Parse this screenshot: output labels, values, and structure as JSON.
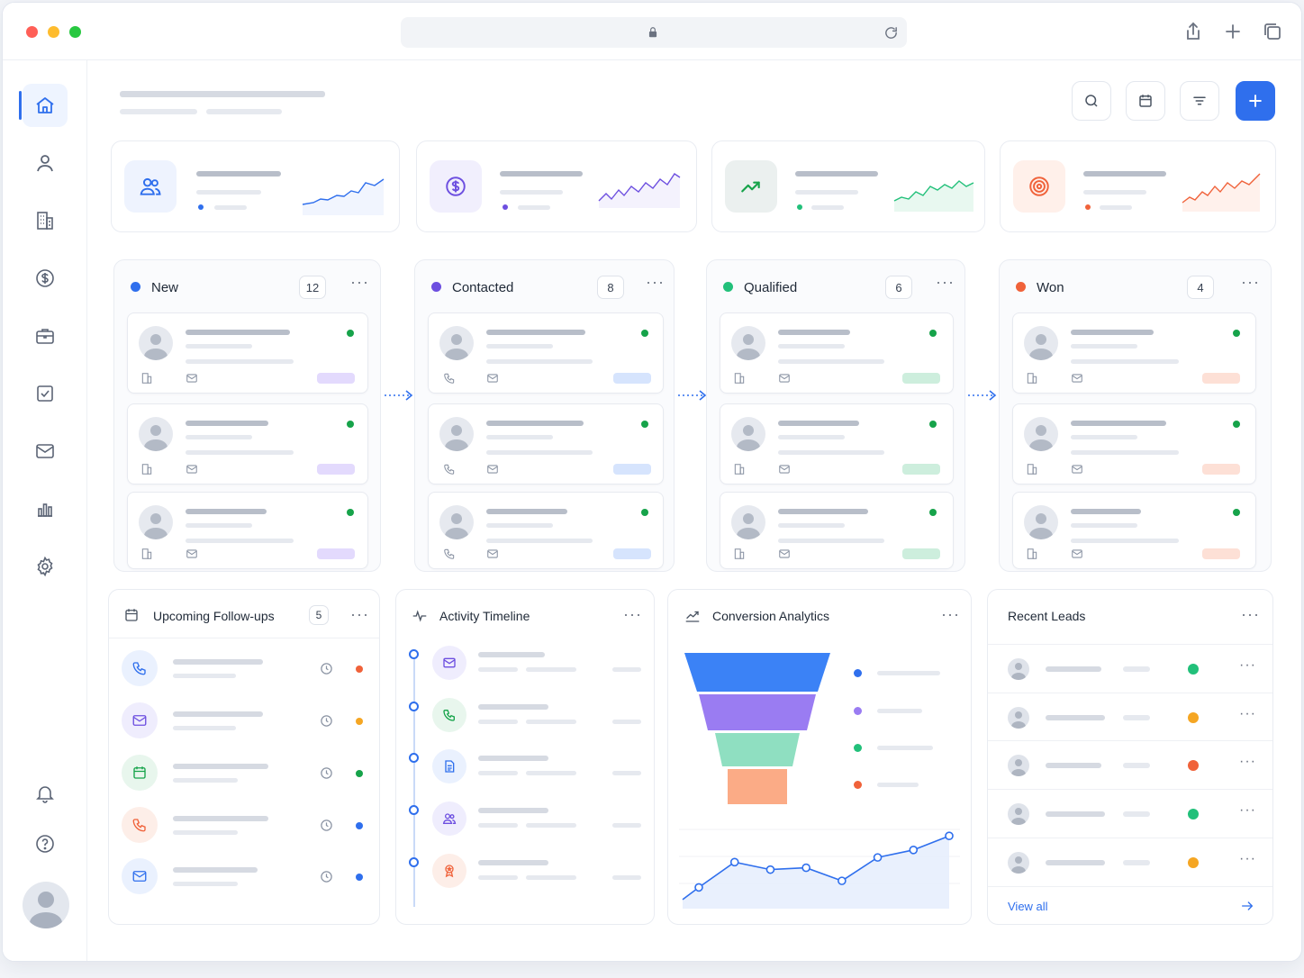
{
  "browser": {
    "traffic_lights": [
      "#ff5f57",
      "#febc2e",
      "#28c840"
    ],
    "icons": [
      "lock-icon",
      "reload-icon",
      "share-icon",
      "new-tab-icon",
      "tabs-icon"
    ]
  },
  "sidebar": {
    "items": [
      "home-icon",
      "user-icon",
      "building-icon",
      "dollar-icon",
      "briefcase-icon",
      "task-icon",
      "mail-icon",
      "chart-icon",
      "settings-icon"
    ],
    "bottom": [
      "bell-icon",
      "help-icon"
    ]
  },
  "header": {
    "actions": [
      "search-icon",
      "calendar-icon",
      "filter-icon",
      "plus-icon"
    ]
  },
  "stats": [
    {
      "icon": "users-icon",
      "color": "#2f6fed",
      "bg": "#eef3fe"
    },
    {
      "icon": "dollar-circle-icon",
      "color": "#6d4fe0",
      "bg": "#f1effd"
    },
    {
      "icon": "trend-up-icon",
      "color": "#16a34a",
      "bg": "#ebf7ef"
    },
    {
      "icon": "target-icon",
      "color": "#f0623a",
      "bg": "#fff0ea"
    }
  ],
  "pipeline": [
    {
      "title": "New",
      "count": "12",
      "color": "#2f6fed",
      "tag": "#e3dafd",
      "contact": "building"
    },
    {
      "title": "Contacted",
      "count": "8",
      "color": "#6d4fe0",
      "tag": "#d6e4fd",
      "contact": "phone"
    },
    {
      "title": "Qualified",
      "count": "6",
      "color": "#22c07a",
      "tag": "#cdeedd",
      "contact": "building"
    },
    {
      "title": "Won",
      "count": "4",
      "color": "#f0623a",
      "tag": "#fde0d6",
      "contact": "building"
    }
  ],
  "followups": {
    "title": "Upcoming Follow-ups",
    "count": "5",
    "items": [
      {
        "icon": "phone-icon",
        "fg": "#2f6fed",
        "bg": "#eaf1fe",
        "status": "#f0623a"
      },
      {
        "icon": "mail-icon",
        "fg": "#6d4fe0",
        "bg": "#efedfd",
        "status": "#f5a623"
      },
      {
        "icon": "calendar-icon",
        "fg": "#16a34a",
        "bg": "#e8f6ed",
        "status": "#16a34a"
      },
      {
        "icon": "phone-icon",
        "fg": "#f0623a",
        "bg": "#fdeee8",
        "status": "#2f6fed"
      },
      {
        "icon": "mail-icon",
        "fg": "#2f6fed",
        "bg": "#eaf1fe",
        "status": "#2f6fed"
      }
    ]
  },
  "timeline": {
    "title": "Activity Timeline",
    "items": [
      {
        "icon": "mail-icon",
        "fg": "#6d4fe0",
        "bg": "#efedfd"
      },
      {
        "icon": "phone-icon",
        "fg": "#16a34a",
        "bg": "#e8f6ed"
      },
      {
        "icon": "document-icon",
        "fg": "#2f6fed",
        "bg": "#eaf1fe"
      },
      {
        "icon": "users-icon",
        "fg": "#6d4fe0",
        "bg": "#efedfd"
      },
      {
        "icon": "badge-icon",
        "fg": "#f0623a",
        "bg": "#fdeee8"
      }
    ]
  },
  "conversion": {
    "title": "Conversion Analytics",
    "funnel_colors": [
      "#3b82f6",
      "#9a7cf2",
      "#8fdfc1",
      "#fbab86"
    ],
    "trend": [
      0.15,
      0.42,
      0.34,
      0.36,
      0.22,
      0.47,
      0.55,
      0.7
    ]
  },
  "chart_data": {
    "type": "line",
    "x": [
      1,
      2,
      3,
      4,
      5,
      6,
      7,
      8
    ],
    "values": [
      0.15,
      0.42,
      0.34,
      0.36,
      0.22,
      0.47,
      0.55,
      0.7
    ],
    "title": "",
    "xlabel": "",
    "ylabel": ""
  },
  "recent_leads": {
    "title": "Recent Leads",
    "statuses": [
      "#22c07a",
      "#f5a623",
      "#f0623a",
      "#22c07a",
      "#f5a623"
    ],
    "view_all": "View all"
  }
}
